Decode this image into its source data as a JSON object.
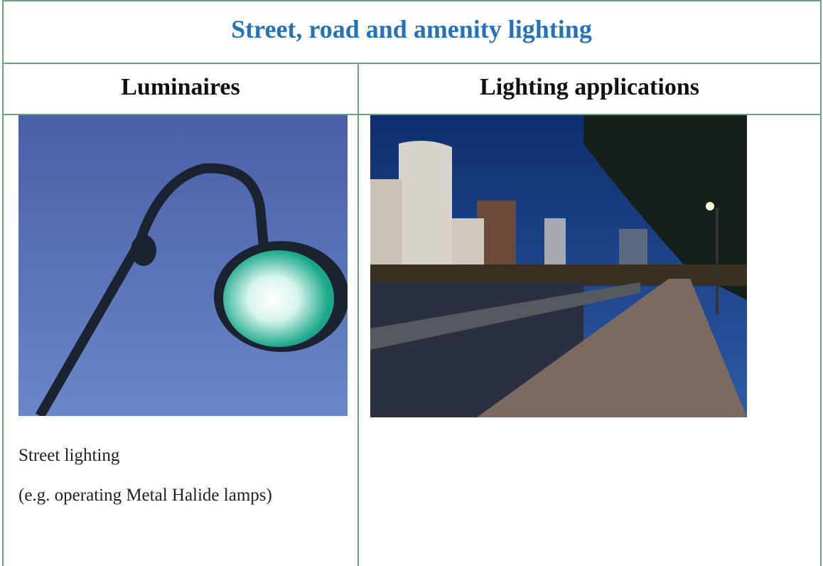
{
  "header": {
    "title": "Street, road and amenity lighting"
  },
  "table": {
    "columns": [
      "Luminaires",
      "Lighting applications"
    ],
    "cells": [
      [
        "Street lighting",
        "(e.g. operating Metal Halide lamps)"
      ]
    ]
  }
}
